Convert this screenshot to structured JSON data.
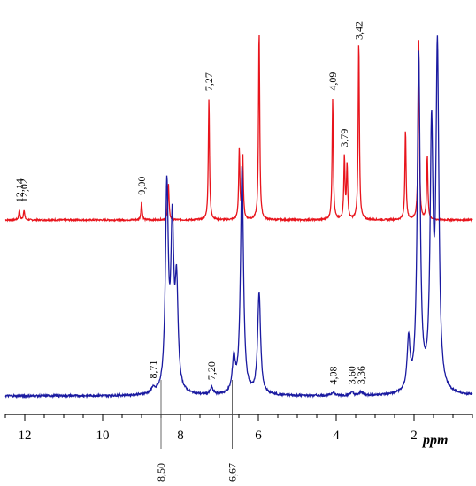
{
  "chart_data": {
    "type": "line",
    "title": "",
    "xlabel": "ppm",
    "ylabel": "",
    "x_reversed": true,
    "xlim": [
      12.5,
      0.5
    ],
    "grid": false,
    "x_ticks": [
      {
        "value": 12,
        "label": "12"
      },
      {
        "value": 10,
        "label": "10"
      },
      {
        "value": 8,
        "label": "8"
      },
      {
        "value": 6,
        "label": "6"
      },
      {
        "value": 4,
        "label": "4"
      },
      {
        "value": 2,
        "label": "2"
      }
    ],
    "series": [
      {
        "color": "#e8141c",
        "peaks": [
          {
            "ppm": 12.14,
            "label": "12,14",
            "height": 0.08
          },
          {
            "ppm": 12.02,
            "label": "12,02",
            "height": 0.08
          },
          {
            "ppm": 9.0,
            "label": "9,00",
            "height": 0.14
          },
          {
            "ppm": 8.31,
            "label": "",
            "height": 0.28
          },
          {
            "ppm": 7.27,
            "label": "7,27",
            "height": 0.95
          },
          {
            "ppm": 6.49,
            "label": "",
            "height": 0.55
          },
          {
            "ppm": 6.4,
            "label": "",
            "height": 0.5
          },
          {
            "ppm": 5.98,
            "label": "",
            "height": 1.5
          },
          {
            "ppm": 4.09,
            "label": "4,09",
            "height": 0.95
          },
          {
            "ppm": 3.79,
            "label": "3,79",
            "height": 0.48
          },
          {
            "ppm": 3.72,
            "label": "",
            "height": 0.42
          },
          {
            "ppm": 3.42,
            "label": "3,42",
            "height": 1.4
          },
          {
            "ppm": 2.22,
            "label": "",
            "height": 0.7
          },
          {
            "ppm": 1.88,
            "label": "",
            "height": 1.4
          },
          {
            "ppm": 1.66,
            "label": "",
            "height": 0.5
          }
        ]
      },
      {
        "color": "#1a1aa0",
        "peaks": [
          {
            "ppm": 8.71,
            "label": "8,71",
            "height": 0.03
          },
          {
            "ppm": 8.35,
            "label": "",
            "height": 1.2
          },
          {
            "ppm": 8.21,
            "label": "",
            "height": 0.95
          },
          {
            "ppm": 8.1,
            "label": "",
            "height": 0.6
          },
          {
            "ppm": 7.2,
            "label": "7,20",
            "height": 0.04
          },
          {
            "ppm": 6.63,
            "label": "",
            "height": 0.2
          },
          {
            "ppm": 6.42,
            "label": "",
            "height": 1.35
          },
          {
            "ppm": 5.98,
            "label": "",
            "height": 0.6
          },
          {
            "ppm": 4.08,
            "label": "4,08",
            "height": 0.02
          },
          {
            "ppm": 3.6,
            "label": "3,60",
            "height": 0.02
          },
          {
            "ppm": 3.36,
            "label": "3,36",
            "height": 0.02
          },
          {
            "ppm": 2.14,
            "label": "",
            "height": 0.3
          },
          {
            "ppm": 1.88,
            "label": "",
            "height": 2.0
          },
          {
            "ppm": 1.55,
            "label": "",
            "height": 1.5
          },
          {
            "ppm": 1.4,
            "label": "",
            "height": 2.0
          }
        ]
      }
    ],
    "reference_lines": [
      {
        "ppm": 8.5,
        "label": "8,50"
      },
      {
        "ppm": 6.67,
        "label": "6,67"
      }
    ]
  }
}
